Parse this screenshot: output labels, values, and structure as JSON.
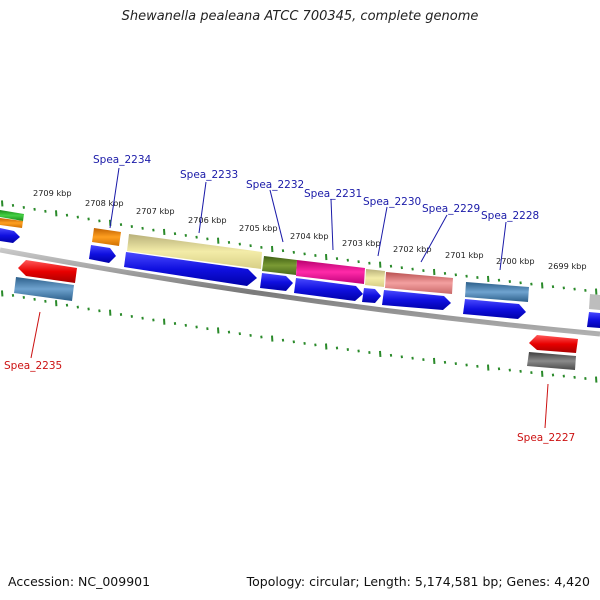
{
  "title": "Shewanella pealeana ATCC 700345, complete genome",
  "footer": {
    "accession": "Accession: NC_009901",
    "summary": "Topology: circular; Length: 5,174,581 bp; Genes: 4,420"
  },
  "kbp_labels": [
    "2709 kbp",
    "2708 kbp",
    "2707 kbp",
    "2706 kbp",
    "2705 kbp",
    "2704 kbp",
    "2703 kbp",
    "2702 kbp",
    "2701 kbp",
    "2700 kbp",
    "2699 kbp"
  ],
  "gene_labels": {
    "forward": [
      "Spea_2234",
      "Spea_2233",
      "Spea_2232",
      "Spea_2231",
      "Spea_2230",
      "Spea_2229",
      "Spea_2228"
    ],
    "reverse": [
      "Spea_2235",
      "Spea_2227"
    ]
  },
  "colors": {
    "label_forward": "#1a1aa8",
    "label_reverse": "#cc1111",
    "tick": "#2a8a2a",
    "backbone": "#8c8c8c",
    "cds_forward": "#1010e0"
  }
}
